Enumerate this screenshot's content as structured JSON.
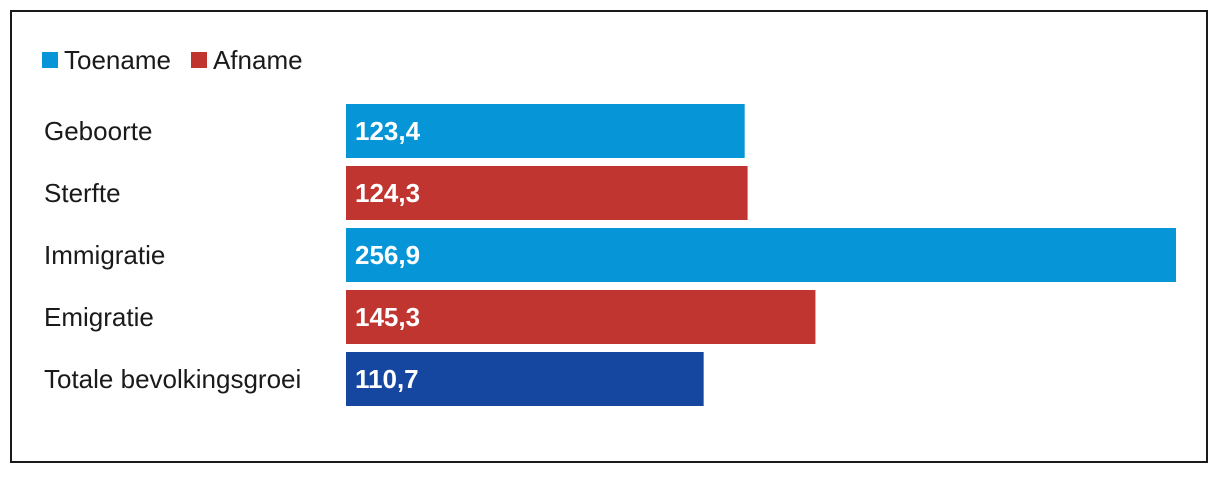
{
  "legend": {
    "items": [
      {
        "label": "Toename",
        "color": "#0696d8"
      },
      {
        "label": "Afname",
        "color": "#c03530"
      }
    ]
  },
  "chart_data": {
    "type": "bar",
    "orientation": "horizontal",
    "title": "",
    "xlabel": "",
    "ylabel": "",
    "grid": false,
    "legend_position": "top-left",
    "xlim": [
      0,
      256.9
    ],
    "categories": [
      "Geboorte",
      "Sterfte",
      "Immigratie",
      "Emigratie",
      "Totale bevolkingsgroei"
    ],
    "values": [
      123.4,
      124.3,
      256.9,
      145.3,
      110.7
    ],
    "value_labels": [
      "123,4",
      "124,3",
      "256,9",
      "145,3",
      "110,7"
    ],
    "bar_colors": [
      "#0696d8",
      "#c03530",
      "#0696d8",
      "#c03530",
      "#1547a0"
    ]
  }
}
